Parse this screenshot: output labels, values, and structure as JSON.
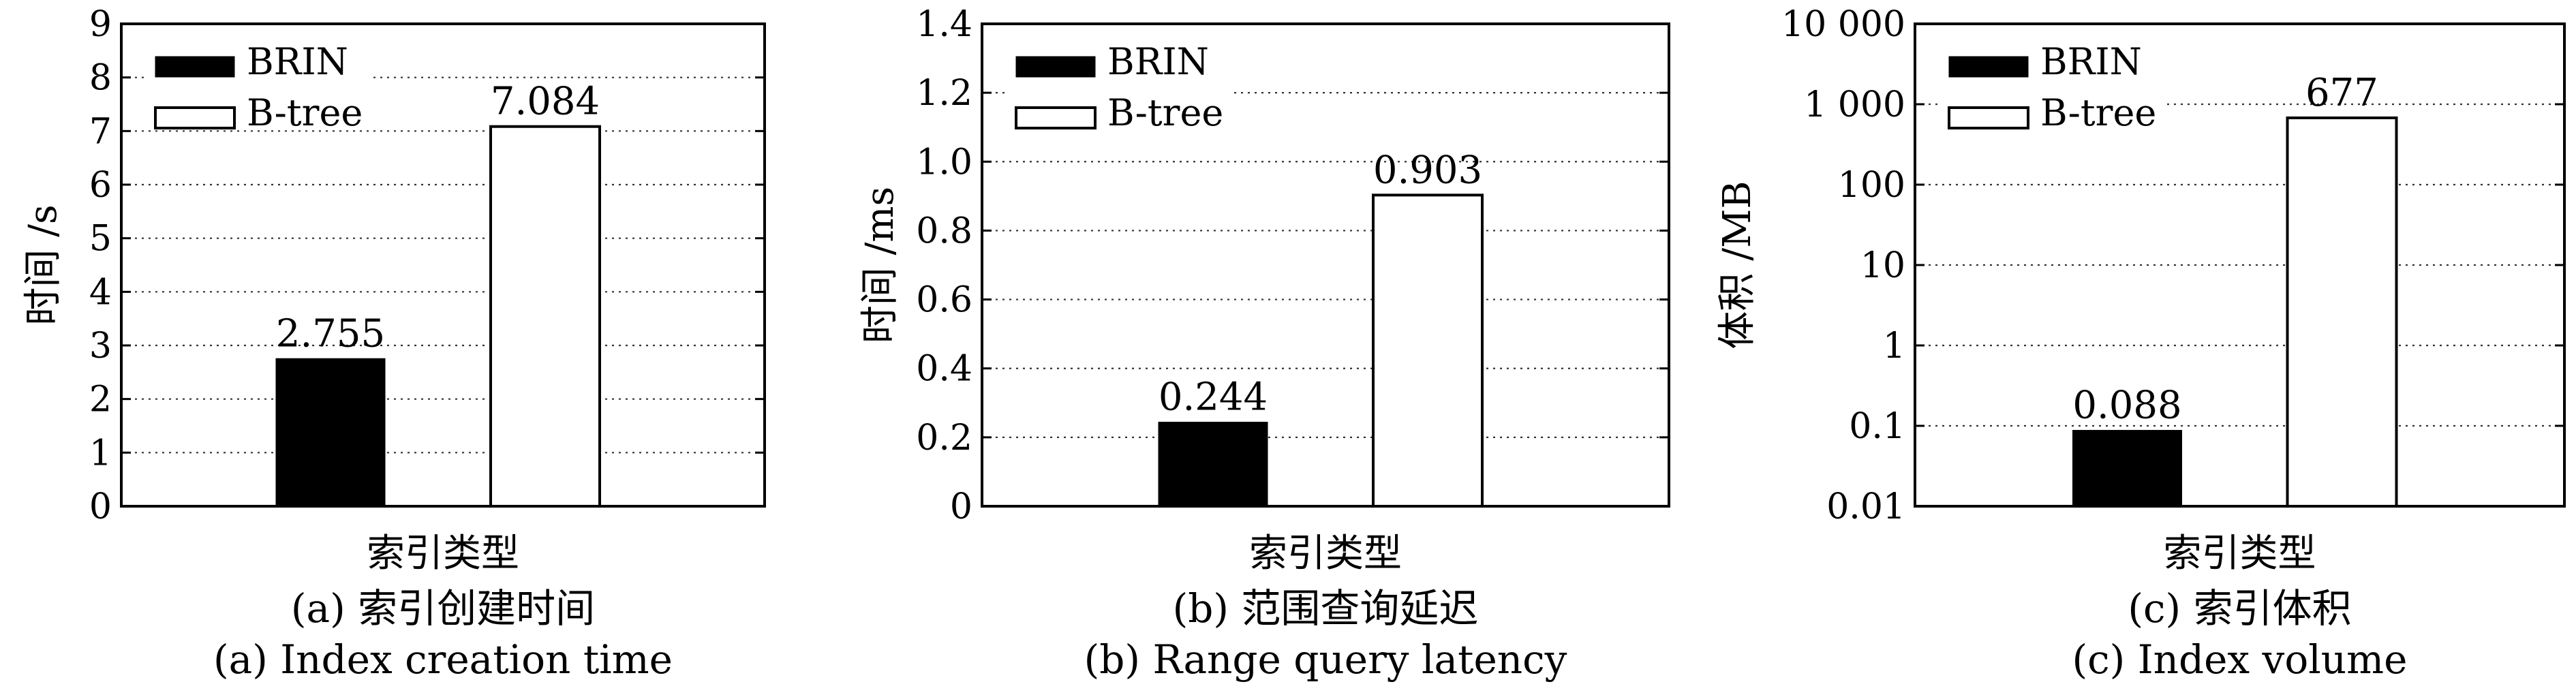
{
  "chart_data": [
    {
      "type": "bar",
      "categories": [
        "索引类型"
      ],
      "series": [
        {
          "name": "BRIN",
          "values": [
            2.755
          ],
          "value_labels": [
            "2.755"
          ],
          "color": "#000000"
        },
        {
          "name": "B-tree",
          "values": [
            7.084
          ],
          "value_labels": [
            "7.084"
          ],
          "color": "#ffffff"
        }
      ],
      "xlabel": "索引类型",
      "ylabel": "时间 /s",
      "ylim": [
        0,
        9
      ],
      "yticks": [
        0,
        1,
        2,
        3,
        4,
        5,
        6,
        7,
        8,
        9
      ],
      "ytick_labels": [
        "0",
        "1",
        "2",
        "3",
        "4",
        "5",
        "6",
        "7",
        "8",
        "9"
      ],
      "yscale": "linear",
      "grid": "horizontal dotted",
      "legend_position": "top-left",
      "caption_zh": "(a) 索引创建时间",
      "caption_en": "(a) Index creation time"
    },
    {
      "type": "bar",
      "categories": [
        "索引类型"
      ],
      "series": [
        {
          "name": "BRIN",
          "values": [
            0.244
          ],
          "value_labels": [
            "0.244"
          ],
          "color": "#000000"
        },
        {
          "name": "B-tree",
          "values": [
            0.903
          ],
          "value_labels": [
            "0.903"
          ],
          "color": "#ffffff"
        }
      ],
      "xlabel": "索引类型",
      "ylabel": "时间 /ms",
      "ylim": [
        0,
        1.4
      ],
      "yticks": [
        0,
        0.2,
        0.4,
        0.6,
        0.8,
        1.0,
        1.2,
        1.4
      ],
      "ytick_labels": [
        "0",
        "0.2",
        "0.4",
        "0.6",
        "0.8",
        "1.0",
        "1.2",
        "1.4"
      ],
      "yscale": "linear",
      "grid": "horizontal dotted",
      "legend_position": "top-left",
      "caption_zh": "(b) 范围查询延迟",
      "caption_en": "(b) Range query latency"
    },
    {
      "type": "bar",
      "categories": [
        "索引类型"
      ],
      "series": [
        {
          "name": "BRIN",
          "values": [
            0.088
          ],
          "value_labels": [
            "0.088"
          ],
          "color": "#000000"
        },
        {
          "name": "B-tree",
          "values": [
            677
          ],
          "value_labels": [
            "677"
          ],
          "color": "#ffffff"
        }
      ],
      "xlabel": "索引类型",
      "ylabel": "体积 /MB",
      "ylim": [
        0.01,
        10000
      ],
      "yticks": [
        0.01,
        0.1,
        1,
        10,
        100,
        1000,
        10000
      ],
      "ytick_labels": [
        "0.01",
        "0.1",
        "1",
        "10",
        "100",
        "1 000",
        "10 000"
      ],
      "yscale": "log",
      "grid": "horizontal dotted",
      "legend_position": "top-left",
      "caption_zh": "(c) 索引体积",
      "caption_en": "(c) Index volume"
    }
  ]
}
